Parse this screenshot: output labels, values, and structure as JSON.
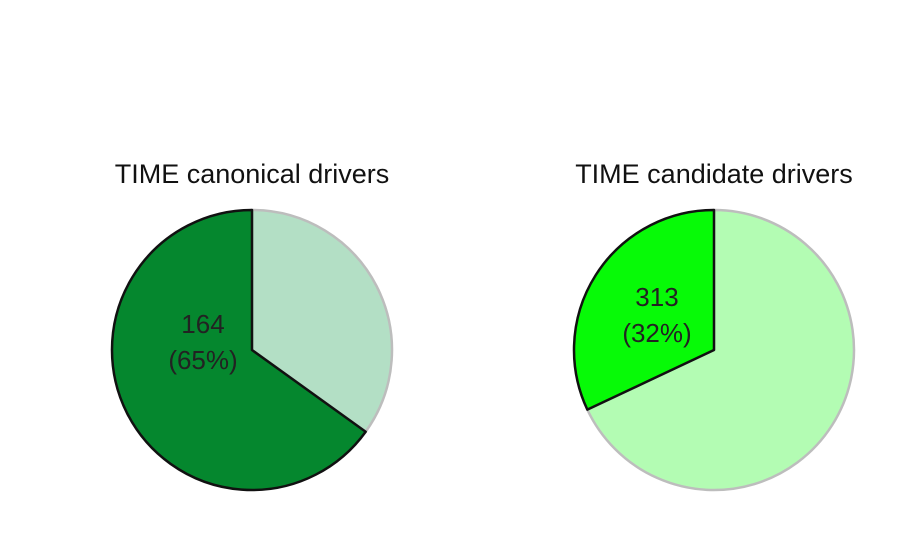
{
  "chart_data": [
    {
      "type": "pie",
      "title": "TIME canonical drivers",
      "slices": [
        {
          "value": 164,
          "percent": 65,
          "label": "164",
          "percent_label": "(65%)",
          "color": "#05872e",
          "highlighted": true
        },
        {
          "value": 88,
          "percent": 35,
          "label": "",
          "percent_label": "",
          "color": "#b3dfc5",
          "highlighted": false
        }
      ]
    },
    {
      "type": "pie",
      "title": "TIME candidate drivers",
      "slices": [
        {
          "value": 313,
          "percent": 32,
          "label": "313",
          "percent_label": "(32%)",
          "color": "#07fa07",
          "highlighted": true
        },
        {
          "value": 665,
          "percent": 68,
          "label": "",
          "percent_label": "",
          "color": "#b3fcb3",
          "highlighted": false
        }
      ]
    }
  ]
}
